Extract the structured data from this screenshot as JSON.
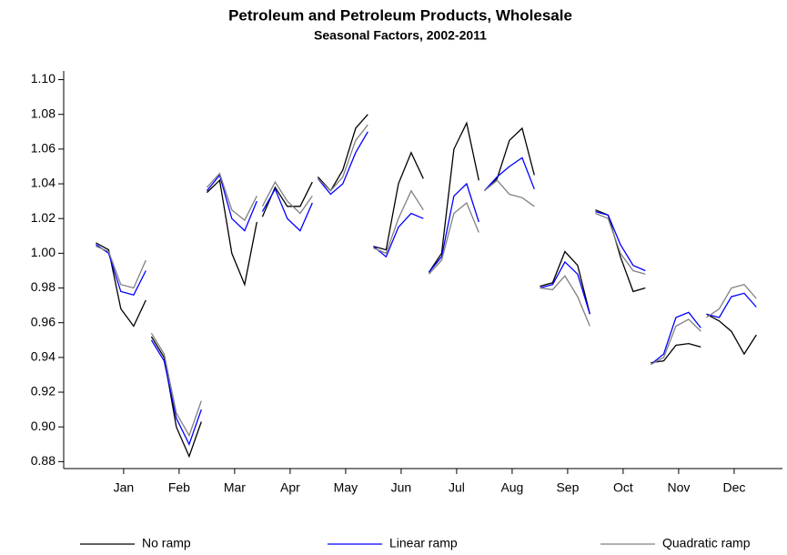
{
  "chart_data": {
    "type": "line",
    "title": "Petroleum and Petroleum Products, Wholesale",
    "subtitle": "Seasonal Factors, 2002-2011",
    "x": [
      0.5,
      0.73,
      0.95,
      1.18,
      1.4,
      1.45,
      1.5,
      1.73,
      1.95,
      2.18,
      2.4,
      2.45,
      2.5,
      2.73,
      2.95,
      3.18,
      3.4,
      3.45,
      3.5,
      3.73,
      3.95,
      4.18,
      4.4,
      4.45,
      4.5,
      4.73,
      4.95,
      5.18,
      5.4,
      5.45,
      5.5,
      5.73,
      5.95,
      6.18,
      6.4,
      6.45,
      6.5,
      6.73,
      6.95,
      7.18,
      7.4,
      7.45,
      7.5,
      7.73,
      7.95,
      8.18,
      8.4,
      8.45,
      8.5,
      8.73,
      8.95,
      9.18,
      9.4,
      9.45,
      9.5,
      9.73,
      9.95,
      10.18,
      10.4,
      10.45,
      10.5,
      10.73,
      10.95,
      11.18,
      11.4,
      11.45,
      11.5,
      11.73,
      11.95,
      12.18,
      12.4
    ],
    "series": [
      {
        "name": "No ramp",
        "color": "#000000",
        "values": [
          1.006,
          1.002,
          0.968,
          0.958,
          0.973,
          null,
          0.952,
          0.94,
          0.9,
          0.883,
          0.903,
          null,
          1.035,
          1.042,
          1.0,
          0.982,
          1.018,
          null,
          1.021,
          1.038,
          1.027,
          1.027,
          1.041,
          null,
          1.044,
          1.036,
          1.048,
          1.072,
          1.08,
          null,
          1.004,
          1.002,
          1.04,
          1.058,
          1.043,
          null,
          0.989,
          1.0,
          1.06,
          1.075,
          1.042,
          null,
          1.036,
          1.043,
          1.065,
          1.072,
          1.045,
          null,
          0.981,
          0.983,
          1.001,
          0.993,
          0.965,
          null,
          1.025,
          1.022,
          0.998,
          0.978,
          0.98,
          null,
          0.937,
          0.938,
          0.947,
          0.948,
          0.946,
          null,
          0.965,
          0.961,
          0.955,
          0.942,
          0.953
        ]
      },
      {
        "name": "Linear ramp",
        "color": "#0000ff",
        "values": [
          1.005,
          1.0,
          0.978,
          0.976,
          0.99,
          null,
          0.95,
          0.938,
          0.905,
          0.89,
          0.91,
          null,
          1.036,
          1.045,
          1.02,
          1.013,
          1.03,
          null,
          1.024,
          1.037,
          1.02,
          1.013,
          1.029,
          null,
          1.043,
          1.034,
          1.04,
          1.058,
          1.07,
          null,
          1.004,
          0.998,
          1.015,
          1.023,
          1.02,
          null,
          0.989,
          0.998,
          1.033,
          1.04,
          1.018,
          null,
          1.036,
          1.044,
          1.05,
          1.055,
          1.037,
          null,
          0.98,
          0.982,
          0.995,
          0.988,
          0.965,
          null,
          1.024,
          1.022,
          1.005,
          0.993,
          0.99,
          null,
          0.936,
          0.942,
          0.963,
          0.966,
          0.957,
          null,
          0.965,
          0.963,
          0.975,
          0.977,
          0.969
        ]
      },
      {
        "name": "Quadratic ramp",
        "color": "#808080",
        "values": [
          1.004,
          1.001,
          0.982,
          0.98,
          0.996,
          null,
          0.954,
          0.942,
          0.908,
          0.895,
          0.915,
          null,
          1.038,
          1.046,
          1.025,
          1.019,
          1.033,
          null,
          1.027,
          1.041,
          1.03,
          1.023,
          1.033,
          null,
          1.043,
          1.036,
          1.044,
          1.065,
          1.074,
          null,
          1.003,
          1.0,
          1.02,
          1.036,
          1.025,
          null,
          0.988,
          0.996,
          1.023,
          1.029,
          1.012,
          null,
          1.036,
          1.042,
          1.034,
          1.032,
          1.027,
          null,
          0.98,
          0.979,
          0.987,
          0.975,
          0.958,
          null,
          1.023,
          1.02,
          1.0,
          0.99,
          0.988,
          null,
          0.936,
          0.94,
          0.958,
          0.962,
          0.955,
          null,
          0.963,
          0.968,
          0.98,
          0.982,
          0.974
        ]
      }
    ],
    "xlim": [
      -0.08,
      12.87
    ],
    "xticks": [
      {
        "value": 1,
        "label": "Jan"
      },
      {
        "value": 2,
        "label": "Feb"
      },
      {
        "value": 3,
        "label": "Mar"
      },
      {
        "value": 4,
        "label": "Apr"
      },
      {
        "value": 5,
        "label": "May"
      },
      {
        "value": 6,
        "label": "Jun"
      },
      {
        "value": 7,
        "label": "Jul"
      },
      {
        "value": 8,
        "label": "Aug"
      },
      {
        "value": 9,
        "label": "Sep"
      },
      {
        "value": 10,
        "label": "Oct"
      },
      {
        "value": 11,
        "label": "Nov"
      },
      {
        "value": 12,
        "label": "Dec"
      }
    ],
    "ylim": [
      0.876,
      1.105
    ],
    "yticks": [
      0.88,
      {
        "value": 0.9,
        "label": "0.90"
      },
      0.92,
      0.94,
      0.96,
      0.98,
      {
        "value": 1,
        "label": "1.00"
      },
      1.02,
      1.04,
      1.06,
      1.08,
      {
        "value": 1.1,
        "label": "1.10"
      }
    ],
    "legend": "bottom"
  }
}
